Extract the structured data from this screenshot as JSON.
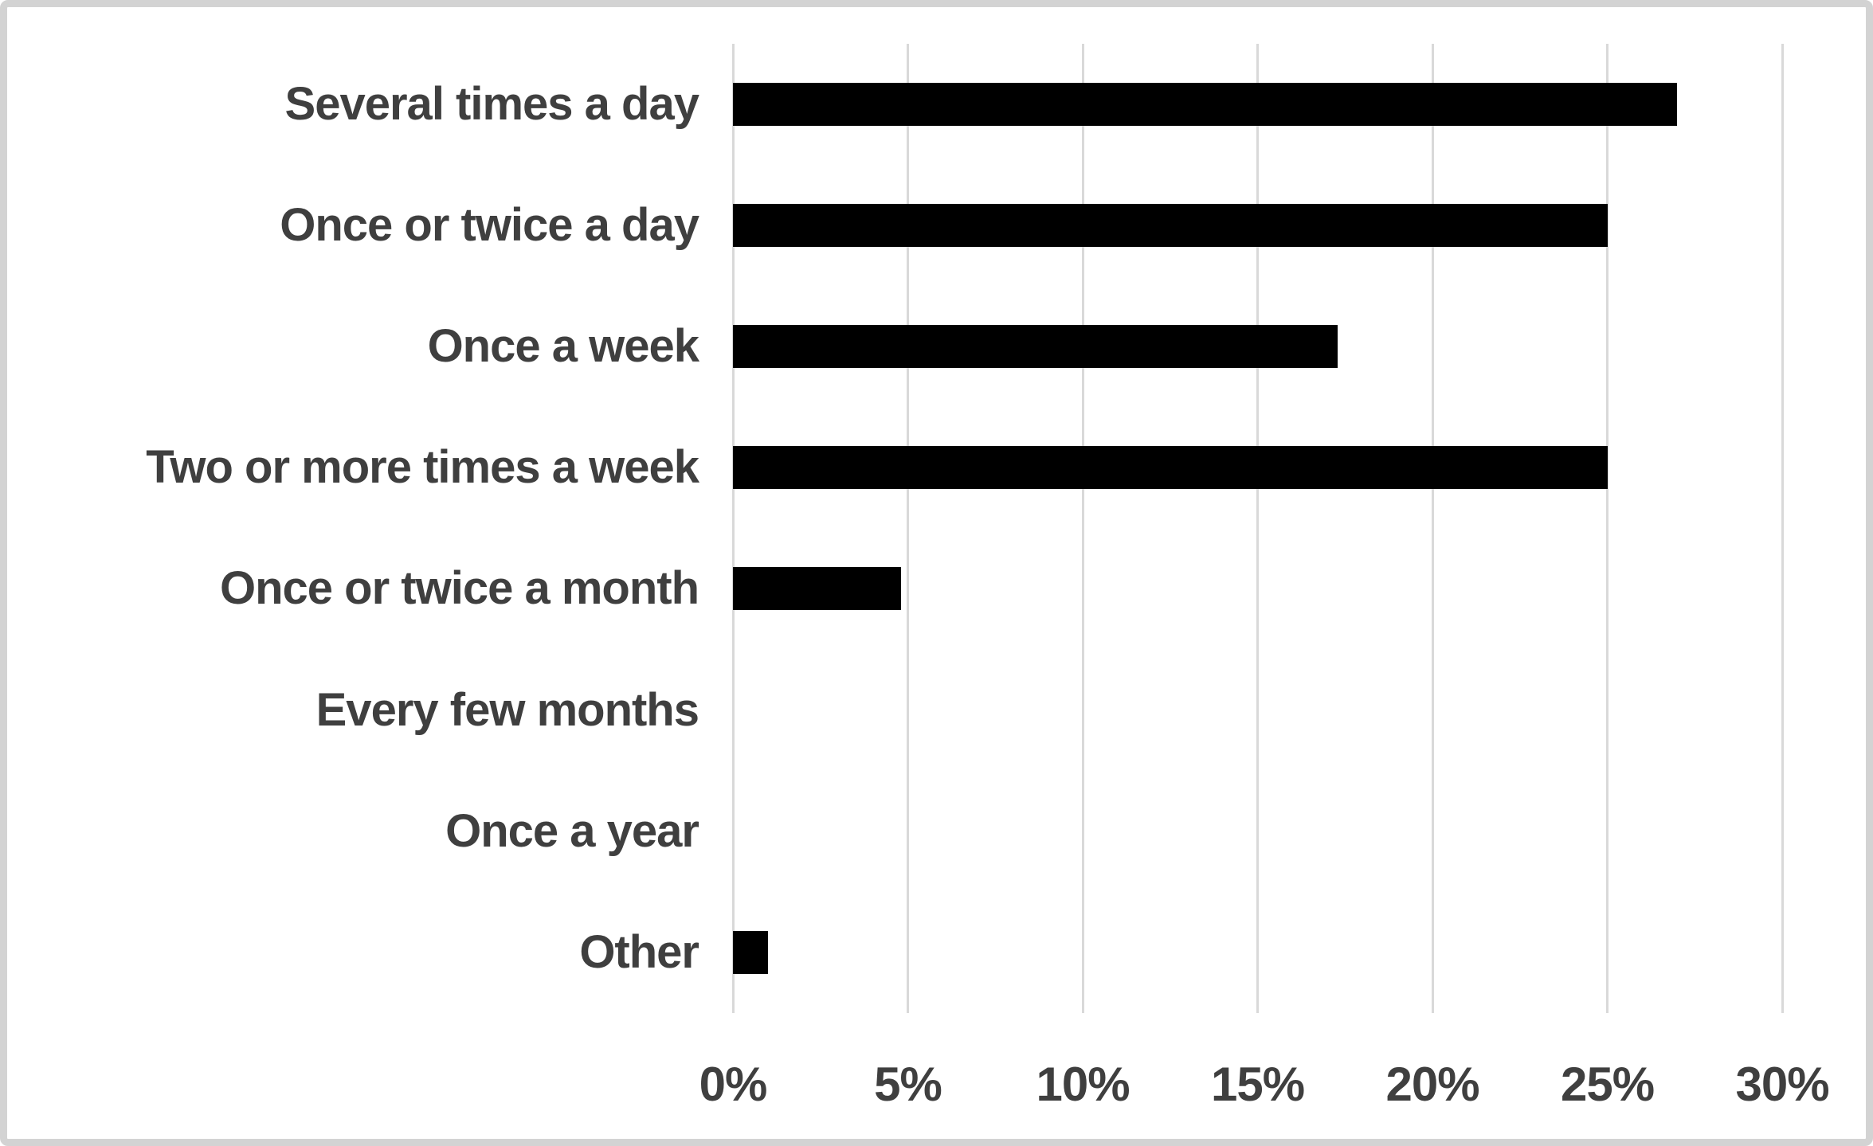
{
  "chart_data": {
    "type": "bar",
    "orientation": "horizontal",
    "title": "",
    "xlabel": "",
    "ylabel": "",
    "categories": [
      "Several times a day",
      "Once or twice a day",
      "Once a week",
      "Two or more times a week",
      "Once or twice a month",
      "Every few months",
      "Once a year",
      "Other"
    ],
    "values": [
      27,
      25,
      17.3,
      25,
      4.8,
      0,
      0,
      1
    ],
    "xlim": [
      0,
      30
    ],
    "x_ticks": [
      "0%",
      "5%",
      "10%",
      "15%",
      "20%",
      "25%",
      "30%"
    ],
    "x_tick_values": [
      0,
      5,
      10,
      15,
      20,
      25,
      30
    ],
    "grid": "vertical",
    "legend": "none",
    "colors": {
      "bar": "#000000",
      "gridline": "#d9d9d9",
      "text": "#3f3f3f",
      "frame_border": "#d3d3d3",
      "background": "#ffffff"
    }
  }
}
